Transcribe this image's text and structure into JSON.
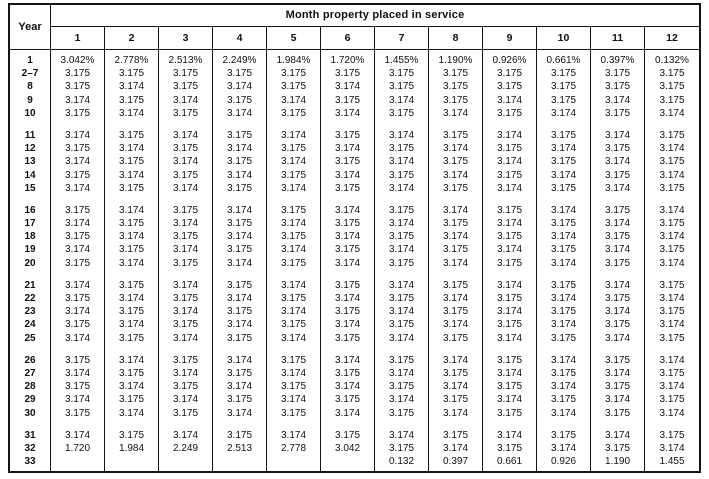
{
  "colors": {
    "border": "#141414",
    "text": "#111111",
    "background": "#ffffff"
  },
  "table": {
    "corner_header": "Year",
    "group_header": "Month property placed in service",
    "month_headers": [
      "1",
      "2",
      "3",
      "4",
      "5",
      "6",
      "7",
      "8",
      "9",
      "10",
      "11",
      "12"
    ],
    "groups": [
      {
        "rows": [
          {
            "year": "1",
            "values": [
              "3.042%",
              "2.778%",
              "2.513%",
              "2.249%",
              "1.984%",
              "1.720%",
              "1.455%",
              "1.190%",
              "0.926%",
              "0.661%",
              "0.397%",
              "0.132%"
            ]
          },
          {
            "year": "2–7",
            "values": [
              "3.175",
              "3.175",
              "3.175",
              "3.175",
              "3.175",
              "3.175",
              "3.175",
              "3.175",
              "3.175",
              "3.175",
              "3.175",
              "3.175"
            ]
          },
          {
            "year": "8",
            "values": [
              "3.175",
              "3.174",
              "3.175",
              "3.174",
              "3.175",
              "3.174",
              "3.175",
              "3.175",
              "3.175",
              "3.175",
              "3.175",
              "3.175"
            ]
          },
          {
            "year": "9",
            "values": [
              "3.174",
              "3.175",
              "3.174",
              "3.175",
              "3.174",
              "3.175",
              "3.174",
              "3.175",
              "3.174",
              "3.175",
              "3.174",
              "3.175"
            ]
          },
          {
            "year": "10",
            "values": [
              "3.175",
              "3.174",
              "3.175",
              "3.174",
              "3.175",
              "3.174",
              "3.175",
              "3.174",
              "3.175",
              "3.174",
              "3.175",
              "3.174"
            ]
          }
        ]
      },
      {
        "rows": [
          {
            "year": "11",
            "values": [
              "3.174",
              "3.175",
              "3.174",
              "3.175",
              "3.174",
              "3.175",
              "3.174",
              "3.175",
              "3.174",
              "3.175",
              "3.174",
              "3.175"
            ]
          },
          {
            "year": "12",
            "values": [
              "3.175",
              "3.174",
              "3.175",
              "3.174",
              "3.175",
              "3.174",
              "3.175",
              "3.174",
              "3.175",
              "3.174",
              "3.175",
              "3.174"
            ]
          },
          {
            "year": "13",
            "values": [
              "3.174",
              "3.175",
              "3.174",
              "3.175",
              "3.174",
              "3.175",
              "3.174",
              "3.175",
              "3.174",
              "3.175",
              "3.174",
              "3.175"
            ]
          },
          {
            "year": "14",
            "values": [
              "3.175",
              "3.174",
              "3.175",
              "3.174",
              "3.175",
              "3.174",
              "3.175",
              "3.174",
              "3.175",
              "3.174",
              "3.175",
              "3.174"
            ]
          },
          {
            "year": "15",
            "values": [
              "3.174",
              "3.175",
              "3.174",
              "3.175",
              "3.174",
              "3.175",
              "3.174",
              "3.175",
              "3.174",
              "3.175",
              "3.174",
              "3.175"
            ]
          }
        ]
      },
      {
        "rows": [
          {
            "year": "16",
            "values": [
              "3.175",
              "3.174",
              "3.175",
              "3.174",
              "3.175",
              "3.174",
              "3.175",
              "3.174",
              "3.175",
              "3.174",
              "3.175",
              "3.174"
            ]
          },
          {
            "year": "17",
            "values": [
              "3.174",
              "3.175",
              "3.174",
              "3.175",
              "3.174",
              "3.175",
              "3.174",
              "3.175",
              "3.174",
              "3.175",
              "3.174",
              "3.175"
            ]
          },
          {
            "year": "18",
            "values": [
              "3.175",
              "3.174",
              "3.175",
              "3.174",
              "3.175",
              "3.174",
              "3.175",
              "3.174",
              "3.175",
              "3.174",
              "3.175",
              "3.174"
            ]
          },
          {
            "year": "19",
            "values": [
              "3.174",
              "3.175",
              "3.174",
              "3.175",
              "3.174",
              "3.175",
              "3.174",
              "3.175",
              "3.174",
              "3.175",
              "3.174",
              "3.175"
            ]
          },
          {
            "year": "20",
            "values": [
              "3.175",
              "3.174",
              "3.175",
              "3.174",
              "3.175",
              "3.174",
              "3.175",
              "3.174",
              "3.175",
              "3.174",
              "3.175",
              "3.174"
            ]
          }
        ]
      },
      {
        "rows": [
          {
            "year": "21",
            "values": [
              "3.174",
              "3.175",
              "3.174",
              "3.175",
              "3.174",
              "3.175",
              "3.174",
              "3.175",
              "3.174",
              "3.175",
              "3.174",
              "3.175"
            ]
          },
          {
            "year": "22",
            "values": [
              "3.175",
              "3.174",
              "3.175",
              "3.174",
              "3.175",
              "3.174",
              "3.175",
              "3.174",
              "3.175",
              "3.174",
              "3.175",
              "3.174"
            ]
          },
          {
            "year": "23",
            "values": [
              "3.174",
              "3.175",
              "3.174",
              "3.175",
              "3.174",
              "3.175",
              "3.174",
              "3.175",
              "3.174",
              "3.175",
              "3.174",
              "3.175"
            ]
          },
          {
            "year": "24",
            "values": [
              "3.175",
              "3.174",
              "3.175",
              "3.174",
              "3.175",
              "3.174",
              "3.175",
              "3.174",
              "3.175",
              "3.174",
              "3.175",
              "3.174"
            ]
          },
          {
            "year": "25",
            "values": [
              "3.174",
              "3.175",
              "3.174",
              "3.175",
              "3.174",
              "3.175",
              "3.174",
              "3.175",
              "3.174",
              "3.175",
              "3.174",
              "3.175"
            ]
          }
        ]
      },
      {
        "rows": [
          {
            "year": "26",
            "values": [
              "3.175",
              "3.174",
              "3.175",
              "3.174",
              "3.175",
              "3.174",
              "3.175",
              "3.174",
              "3.175",
              "3.174",
              "3.175",
              "3.174"
            ]
          },
          {
            "year": "27",
            "values": [
              "3.174",
              "3.175",
              "3.174",
              "3.175",
              "3.174",
              "3.175",
              "3.174",
              "3.175",
              "3.174",
              "3.175",
              "3.174",
              "3.175"
            ]
          },
          {
            "year": "28",
            "values": [
              "3.175",
              "3.174",
              "3.175",
              "3.174",
              "3.175",
              "3.174",
              "3.175",
              "3.174",
              "3.175",
              "3.174",
              "3.175",
              "3.174"
            ]
          },
          {
            "year": "29",
            "values": [
              "3.174",
              "3.175",
              "3.174",
              "3.175",
              "3.174",
              "3.175",
              "3.174",
              "3.175",
              "3.174",
              "3.175",
              "3.174",
              "3.175"
            ]
          },
          {
            "year": "30",
            "values": [
              "3.175",
              "3.174",
              "3.175",
              "3.174",
              "3.175",
              "3.174",
              "3.175",
              "3.174",
              "3.175",
              "3.174",
              "3.175",
              "3.174"
            ]
          }
        ]
      },
      {
        "rows": [
          {
            "year": "31",
            "values": [
              "3.174",
              "3.175",
              "3.174",
              "3.175",
              "3.174",
              "3.175",
              "3.174",
              "3.175",
              "3.174",
              "3.175",
              "3.174",
              "3.175"
            ]
          },
          {
            "year": "32",
            "values": [
              "1.720",
              "1.984",
              "2.249",
              "2.513",
              "2.778",
              "3.042",
              "3.175",
              "3.174",
              "3.175",
              "3.174",
              "3.175",
              "3.174"
            ]
          },
          {
            "year": "33",
            "values": [
              "",
              "",
              "",
              "",
              "",
              "",
              "0.132",
              "0.397",
              "0.661",
              "0.926",
              "1.190",
              "1.455"
            ]
          }
        ]
      }
    ]
  }
}
